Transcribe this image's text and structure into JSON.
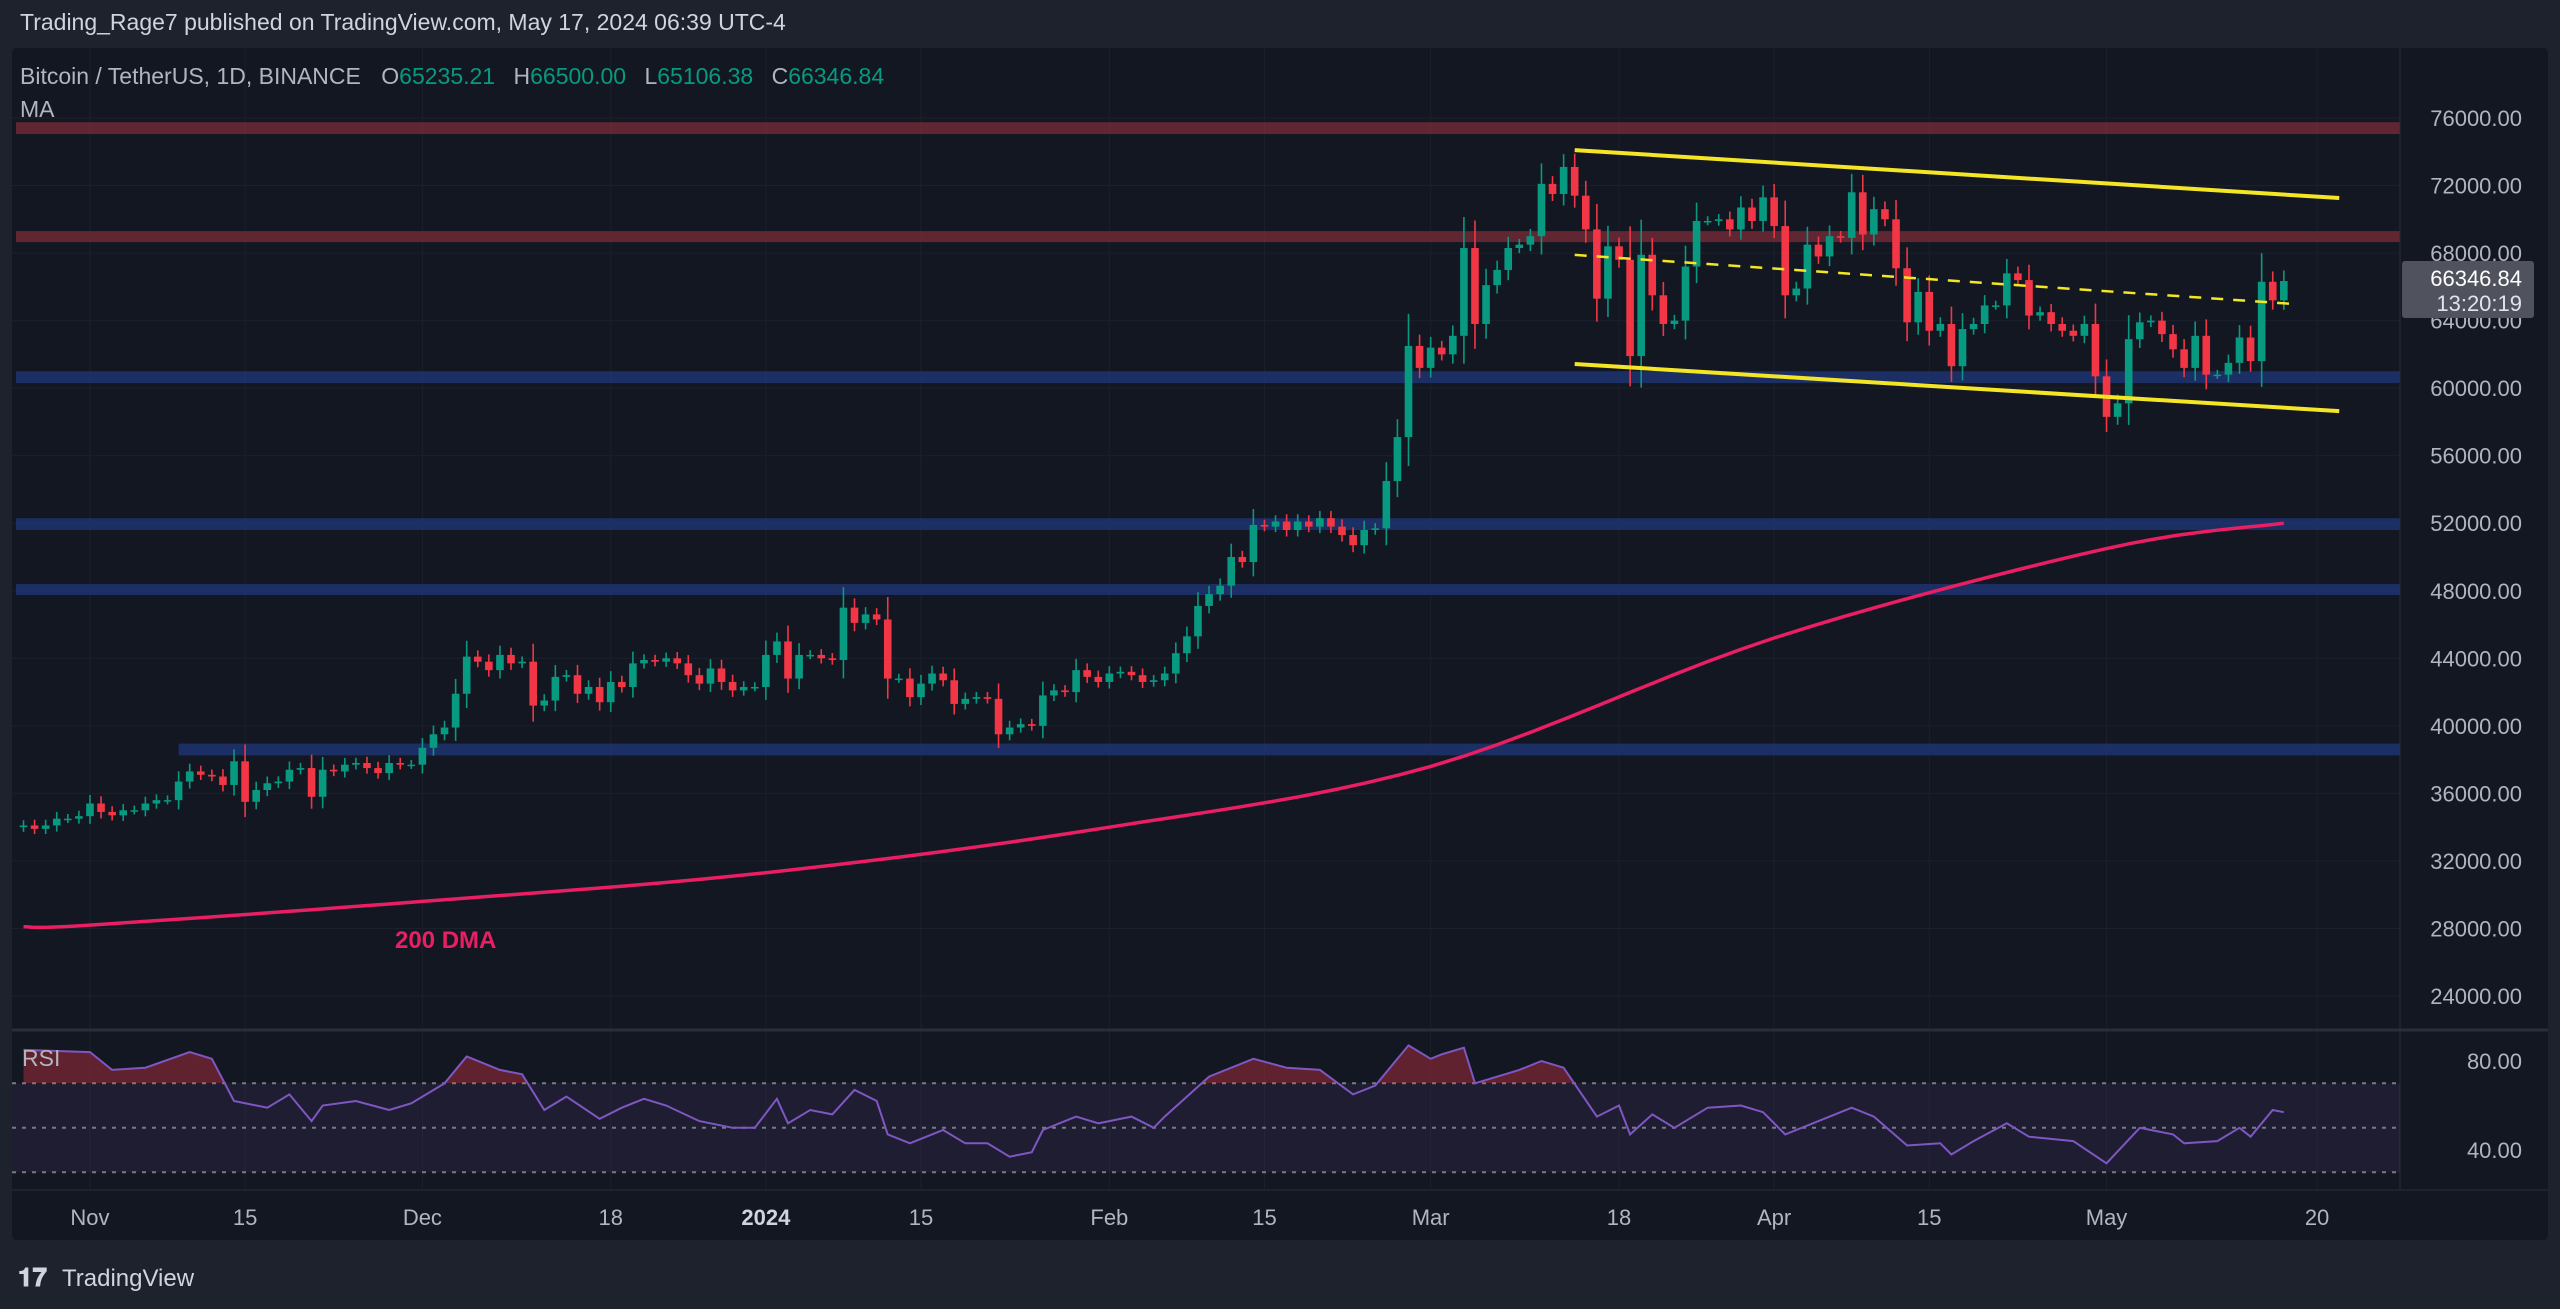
{
  "header": {
    "published": "Trading_Rage7 published on TradingView.com, May 17, 2024 06:39 UTC-4"
  },
  "legend": {
    "symbol": "Bitcoin / TetherUS, 1D, BINANCE",
    "o_label": "O",
    "open": "65235.21",
    "h_label": "H",
    "high": "66500.00",
    "l_label": "L",
    "low": "65106.38",
    "c_label": "C",
    "close": "66346.84",
    "indicator": "MA"
  },
  "price_tag": {
    "price": "66346.84",
    "countdown": "13:20:19"
  },
  "rsi_label": "RSI",
  "dma_label": "200 DMA",
  "footer": {
    "brand": "TradingView",
    "logo_text": "17"
  },
  "colors": {
    "up": "#089981",
    "down": "#f23645",
    "ma": "#e91e63",
    "channel": "#f5e625",
    "rsi": "#7e57c2",
    "zone_red": "#6e2a35",
    "zone_blue": "#1e3470"
  },
  "chart_data": {
    "type": "candlestick",
    "title": "Bitcoin / TetherUS, 1D, BINANCE",
    "start_date": "2023-10-26",
    "first_open": 34000,
    "closes": [
      34100,
      33900,
      34100,
      34500,
      34500,
      34650,
      35400,
      34900,
      34700,
      35000,
      35000,
      35400,
      35600,
      35600,
      36700,
      37300,
      37100,
      37000,
      36500,
      37900,
      35500,
      36200,
      36600,
      36700,
      37400,
      37500,
      35800,
      37400,
      37300,
      37700,
      37800,
      37500,
      37200,
      37800,
      37700,
      37700,
      38700,
      39500,
      39900,
      41900,
      44100,
      43800,
      43300,
      44200,
      43700,
      43800,
      41200,
      41500,
      42900,
      43000,
      41900,
      42300,
      41400,
      42600,
      42300,
      43700,
      43900,
      43800,
      44000,
      43700,
      43000,
      42500,
      43400,
      42600,
      42100,
      42300,
      42300,
      44200,
      45000,
      42800,
      44200,
      44200,
      44000,
      43900,
      47000,
      46100,
      46600,
      46300,
      42800,
      42800,
      41700,
      42500,
      43100,
      42700,
      41300,
      41600,
      41700,
      41600,
      39500,
      39900,
      40100,
      40000,
      41800,
      42100,
      42000,
      43300,
      42900,
      42600,
      43100,
      43200,
      43000,
      42600,
      42700,
      43100,
      44300,
      45300,
      47100,
      47800,
      48300,
      50000,
      49700,
      51900,
      51800,
      52100,
      51600,
      52100,
      51800,
      52300,
      51800,
      51300,
      50700,
      51600,
      51700,
      54500,
      57100,
      62500,
      61200,
      62400,
      62000,
      63100,
      68300,
      63800,
      66100,
      67000,
      68300,
      68500,
      69000,
      72100,
      71500,
      73100,
      71400,
      69400,
      65300,
      68400,
      67600,
      61900,
      67900,
      65500,
      63800,
      64000,
      67200,
      69900,
      69900,
      70000,
      69400,
      70700,
      69900,
      71300,
      69600,
      65500,
      65900,
      68500,
      67800,
      69000,
      68900,
      71600,
      69100,
      70600,
      70000,
      67100,
      63900,
      65700,
      63400,
      63800,
      61300,
      63500,
      63800,
      64900,
      64900,
      66800,
      66400,
      64300,
      64500,
      63800,
      63400,
      63100,
      63800,
      60700,
      58300,
      59100,
      62900,
      63900,
      64000,
      63200,
      62300,
      61200,
      63100,
      60800,
      60800,
      61500,
      63000,
      61600,
      66300,
      65200,
      66346.84
    ],
    "y_ticks": [
      "76000.00",
      "72000.00",
      "68000.00",
      "64000.00",
      "60000.00",
      "56000.00",
      "52000.00",
      "48000.00",
      "44000.00",
      "40000.00",
      "36000.00",
      "32000.00",
      "28000.00",
      "24000.00"
    ],
    "ylim": [
      24000,
      76000
    ],
    "x_ticks": [
      {
        "label": "Nov",
        "day": 6
      },
      {
        "label": "15",
        "day": 20
      },
      {
        "label": "Dec",
        "day": 36
      },
      {
        "label": "18",
        "day": 53
      },
      {
        "label": "2024",
        "day": 67,
        "bold": true
      },
      {
        "label": "15",
        "day": 81
      },
      {
        "label": "Feb",
        "day": 98
      },
      {
        "label": "15",
        "day": 112
      },
      {
        "label": "Mar",
        "day": 127
      },
      {
        "label": "18",
        "day": 144
      },
      {
        "label": "Apr",
        "day": 158
      },
      {
        "label": "15",
        "day": 172
      },
      {
        "label": "May",
        "day": 188
      },
      {
        "label": "20",
        "day": 207
      }
    ],
    "ma200": [
      [
        0,
        28100
      ],
      [
        6,
        28200
      ],
      [
        36,
        29600
      ],
      [
        67,
        31300
      ],
      [
        98,
        34000
      ],
      [
        127,
        37600
      ],
      [
        158,
        45200
      ],
      [
        188,
        50500
      ],
      [
        204,
        52000
      ]
    ],
    "zones": [
      {
        "color": "red",
        "low": 75050,
        "high": 75750,
        "from_day": null
      },
      {
        "color": "red",
        "low": 68650,
        "high": 69300,
        "from_day": null
      },
      {
        "color": "blue",
        "low": 60300,
        "high": 61000,
        "from_day": null
      },
      {
        "color": "blue",
        "low": 51600,
        "high": 52300,
        "from_day": null
      },
      {
        "color": "blue",
        "low": 47750,
        "high": 48400,
        "from_day": null
      },
      {
        "color": "blue",
        "low": 38250,
        "high": 38950,
        "from_day": 14
      }
    ],
    "channel": {
      "upper": [
        [
          140,
          74100
        ],
        [
          209,
          71260
        ]
      ],
      "lower": [
        [
          140,
          61430
        ],
        [
          209,
          58640
        ]
      ],
      "mid_dashed": [
        [
          140,
          67890
        ],
        [
          205,
          64980
        ]
      ]
    },
    "rsi": {
      "y_ticks": [
        "80.00",
        "40.00"
      ],
      "levels": [
        70,
        50,
        30
      ],
      "points": [
        [
          0,
          85
        ],
        [
          6,
          84
        ],
        [
          8,
          76
        ],
        [
          11,
          77
        ],
        [
          15,
          84
        ],
        [
          17,
          81
        ],
        [
          19,
          62
        ],
        [
          22,
          59
        ],
        [
          24,
          65
        ],
        [
          26,
          53
        ],
        [
          27,
          60
        ],
        [
          30,
          62
        ],
        [
          33,
          58
        ],
        [
          35,
          61
        ],
        [
          38,
          70
        ],
        [
          40,
          82
        ],
        [
          43,
          76
        ],
        [
          45,
          74
        ],
        [
          47,
          58
        ],
        [
          49,
          64
        ],
        [
          52,
          54
        ],
        [
          54,
          59
        ],
        [
          56,
          63
        ],
        [
          58,
          60
        ],
        [
          61,
          53
        ],
        [
          64,
          50
        ],
        [
          66,
          50
        ],
        [
          68,
          63
        ],
        [
          69,
          52
        ],
        [
          71,
          58
        ],
        [
          73,
          56
        ],
        [
          75,
          67
        ],
        [
          77,
          62
        ],
        [
          78,
          47
        ],
        [
          80,
          43
        ],
        [
          83,
          49
        ],
        [
          85,
          43
        ],
        [
          87,
          43
        ],
        [
          89,
          37
        ],
        [
          91,
          39
        ],
        [
          92,
          49
        ],
        [
          95,
          55
        ],
        [
          97,
          52
        ],
        [
          100,
          55
        ],
        [
          102,
          50
        ],
        [
          103,
          55
        ],
        [
          107,
          73
        ],
        [
          111,
          81
        ],
        [
          114,
          77
        ],
        [
          117,
          76
        ],
        [
          120,
          65
        ],
        [
          122,
          69
        ],
        [
          125,
          87
        ],
        [
          127,
          81
        ],
        [
          128,
          83
        ],
        [
          130,
          86
        ],
        [
          131,
          70
        ],
        [
          135,
          76
        ],
        [
          137,
          80
        ],
        [
          139,
          77
        ],
        [
          142,
          55
        ],
        [
          144,
          60
        ],
        [
          145,
          47
        ],
        [
          147,
          56
        ],
        [
          149,
          50
        ],
        [
          152,
          59
        ],
        [
          155,
          60
        ],
        [
          157,
          57
        ],
        [
          159,
          47
        ],
        [
          162,
          53
        ],
        [
          165,
          59
        ],
        [
          167,
          55
        ],
        [
          170,
          42
        ],
        [
          173,
          43
        ],
        [
          174,
          38
        ],
        [
          176,
          44
        ],
        [
          179,
          52
        ],
        [
          181,
          46
        ],
        [
          185,
          44
        ],
        [
          188,
          34
        ],
        [
          191,
          50
        ],
        [
          194,
          47
        ],
        [
          195,
          43
        ],
        [
          198,
          44
        ],
        [
          200,
          50
        ],
        [
          201,
          46
        ],
        [
          203,
          58
        ],
        [
          204,
          57
        ]
      ]
    }
  }
}
